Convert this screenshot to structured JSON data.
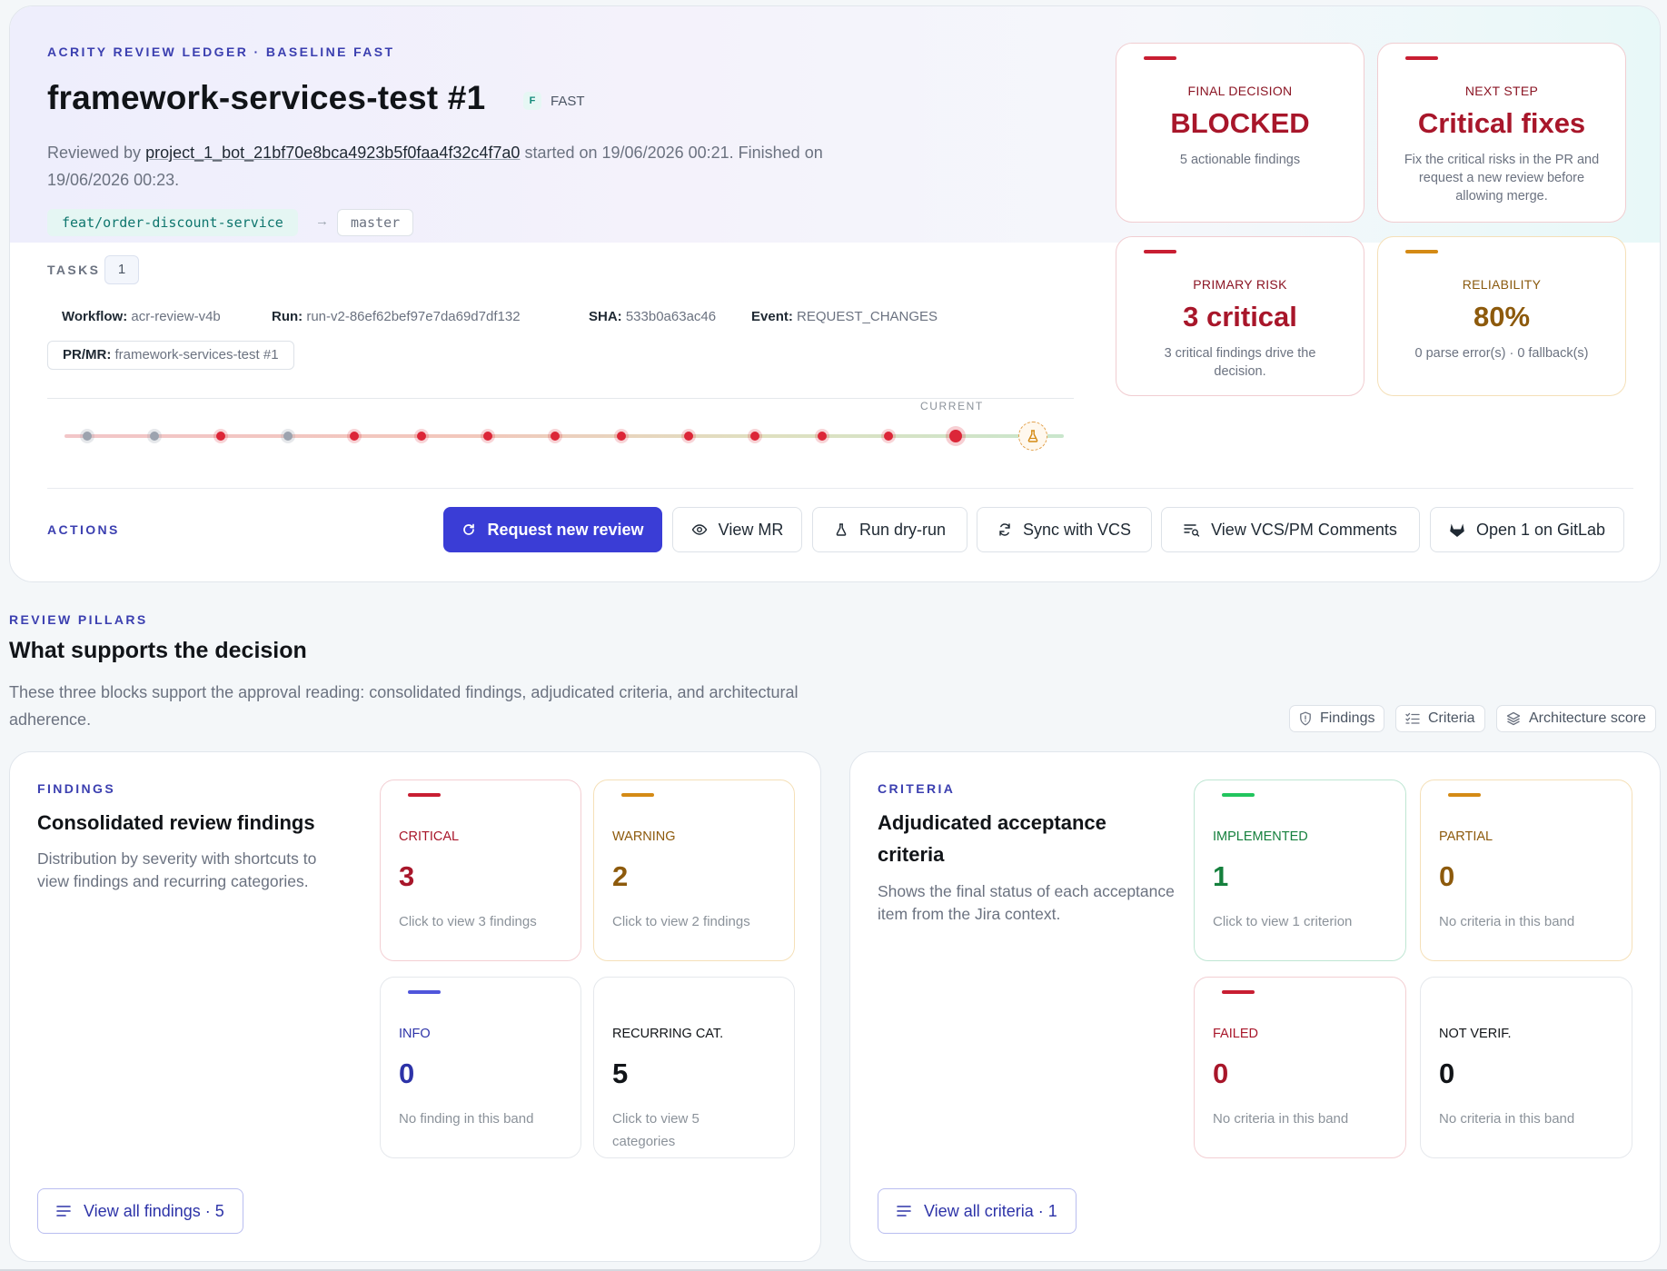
{
  "header": {
    "eyebrow": "ACRITY REVIEW LEDGER · BASELINE FAST",
    "title": "framework-services-test #1",
    "mode_badge": "F",
    "mode_label": "FAST",
    "reviewed_prefix": "Reviewed by",
    "reviewer": "project_1_bot_21bf70e8bca4923b5f0faa4f32c4f7a0",
    "reviewed_suffix": "started on 19/06/2026 00:21. Finished on 19/06/2026 00:23.",
    "source_branch": "feat/order-discount-service",
    "arrow": "→",
    "target_branch": "master"
  },
  "tasks": {
    "label": "TASKS",
    "count": "1"
  },
  "meta": {
    "workflow_label": "Workflow:",
    "workflow": "acr-review-v4b",
    "run_label": "Run:",
    "run": "run-v2-86ef62bef97e7da69d7df132",
    "sha_label": "SHA:",
    "sha": "533b0a63ac46",
    "event_label": "Event:",
    "event": "REQUEST_CHANGES",
    "pr_label": "PR/MR:",
    "pr": "framework-services-test #1"
  },
  "timeline": {
    "current_label": "CURRENT",
    "nodes": [
      "grey",
      "grey",
      "red",
      "grey",
      "red",
      "red",
      "red",
      "red",
      "red",
      "red",
      "red",
      "red",
      "red",
      "red-current"
    ],
    "end_icon": "flask-icon"
  },
  "kpis": {
    "final_decision": {
      "label": "FINAL DECISION",
      "value": "BLOCKED",
      "desc": "5 actionable findings",
      "tone": "#c81e32"
    },
    "next_step": {
      "label": "NEXT STEP",
      "value": "Critical fixes",
      "desc": "Fix the critical risks in the PR and request a new review before allowing merge.",
      "tone": "#c81e32"
    },
    "primary_risk": {
      "label": "PRIMARY RISK",
      "value": "3 critical",
      "desc": "3 critical findings drive the decision.",
      "tone": "#c81e32"
    },
    "reliability": {
      "label": "RELIABILITY",
      "value": "80%",
      "desc": "0 parse error(s) · 0 fallback(s)",
      "tone": "#d48a15"
    }
  },
  "actions": {
    "label": "ACTIONS",
    "request_review": "Request new review",
    "view_mr": "View MR",
    "dry_run": "Run dry-run",
    "sync_vcs": "Sync with VCS",
    "view_comments": "View VCS/PM Comments",
    "open_gitlab": "Open 1 on GitLab"
  },
  "pillars": {
    "eyebrow": "REVIEW PILLARS",
    "title": "What supports the decision",
    "desc": "These three blocks support the approval reading: consolidated findings, adjudicated criteria, and architectural adherence.",
    "chips": [
      "Findings",
      "Criteria",
      "Architecture score"
    ]
  },
  "findings": {
    "eyebrow": "FINDINGS",
    "title": "Consolidated review findings",
    "desc": "Distribution by severity with shortcuts to view findings and recurring categories.",
    "cards": {
      "critical": {
        "label": "CRITICAL",
        "value": "3",
        "desc": "Click to view 3 findings"
      },
      "warning": {
        "label": "WARNING",
        "value": "2",
        "desc": "Click to view 2 findings"
      },
      "info": {
        "label": "INFO",
        "value": "0",
        "desc": "No finding in this band"
      },
      "recurring": {
        "label": "RECURRING CAT.",
        "value": "5",
        "desc": "Click to view 5 categories"
      }
    },
    "view_all": "View all findings · 5"
  },
  "criteria": {
    "eyebrow": "CRITERIA",
    "title": "Adjudicated acceptance criteria",
    "desc": "Shows the final status of each acceptance item from the Jira context.",
    "cards": {
      "implemented": {
        "label": "IMPLEMENTED",
        "value": "1",
        "desc": "Click to view 1 criterion"
      },
      "partial": {
        "label": "PARTIAL",
        "value": "0",
        "desc": "No criteria in this band"
      },
      "failed": {
        "label": "FAILED",
        "value": "0",
        "desc": "No criteria in this band"
      },
      "not_verified": {
        "label": "NOT VERIF.",
        "value": "0",
        "desc": "No criteria in this band"
      }
    },
    "view_all": "View all criteria · 1"
  }
}
